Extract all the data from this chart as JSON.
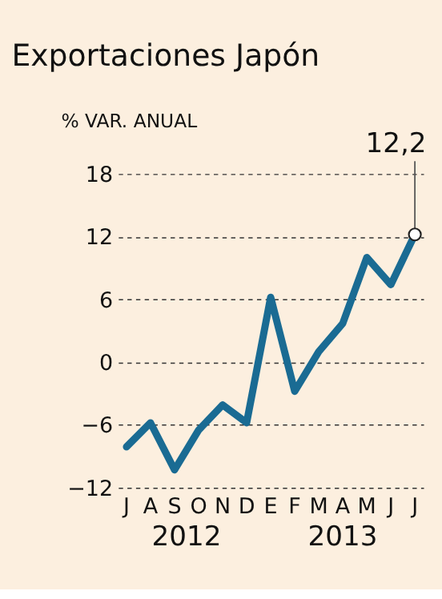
{
  "chart_data": {
    "type": "line",
    "title": "Exportaciones Japón",
    "ylabel": "% VAR. ANUAL",
    "categories": [
      "J",
      "A",
      "S",
      "O",
      "N",
      "D",
      "E",
      "F",
      "M",
      "A",
      "M",
      "J",
      "J"
    ],
    "series": [
      {
        "color": "#1a6b93",
        "values": [
          -8.1,
          -5.8,
          -10.3,
          -6.5,
          -4.1,
          -5.8,
          6.2,
          -2.8,
          1.0,
          3.7,
          10.0,
          7.4,
          12.2
        ],
        "value_labels": [
          null,
          null,
          null,
          null,
          null,
          null,
          null,
          null,
          null,
          null,
          null,
          null,
          "12,2"
        ]
      }
    ],
    "ylim": [
      -12,
      18
    ],
    "yticks": [
      -12,
      -6,
      0,
      6,
      12,
      18
    ],
    "grid": "y",
    "marker": "none",
    "annotations": [
      "2012",
      "2013"
    ]
  }
}
